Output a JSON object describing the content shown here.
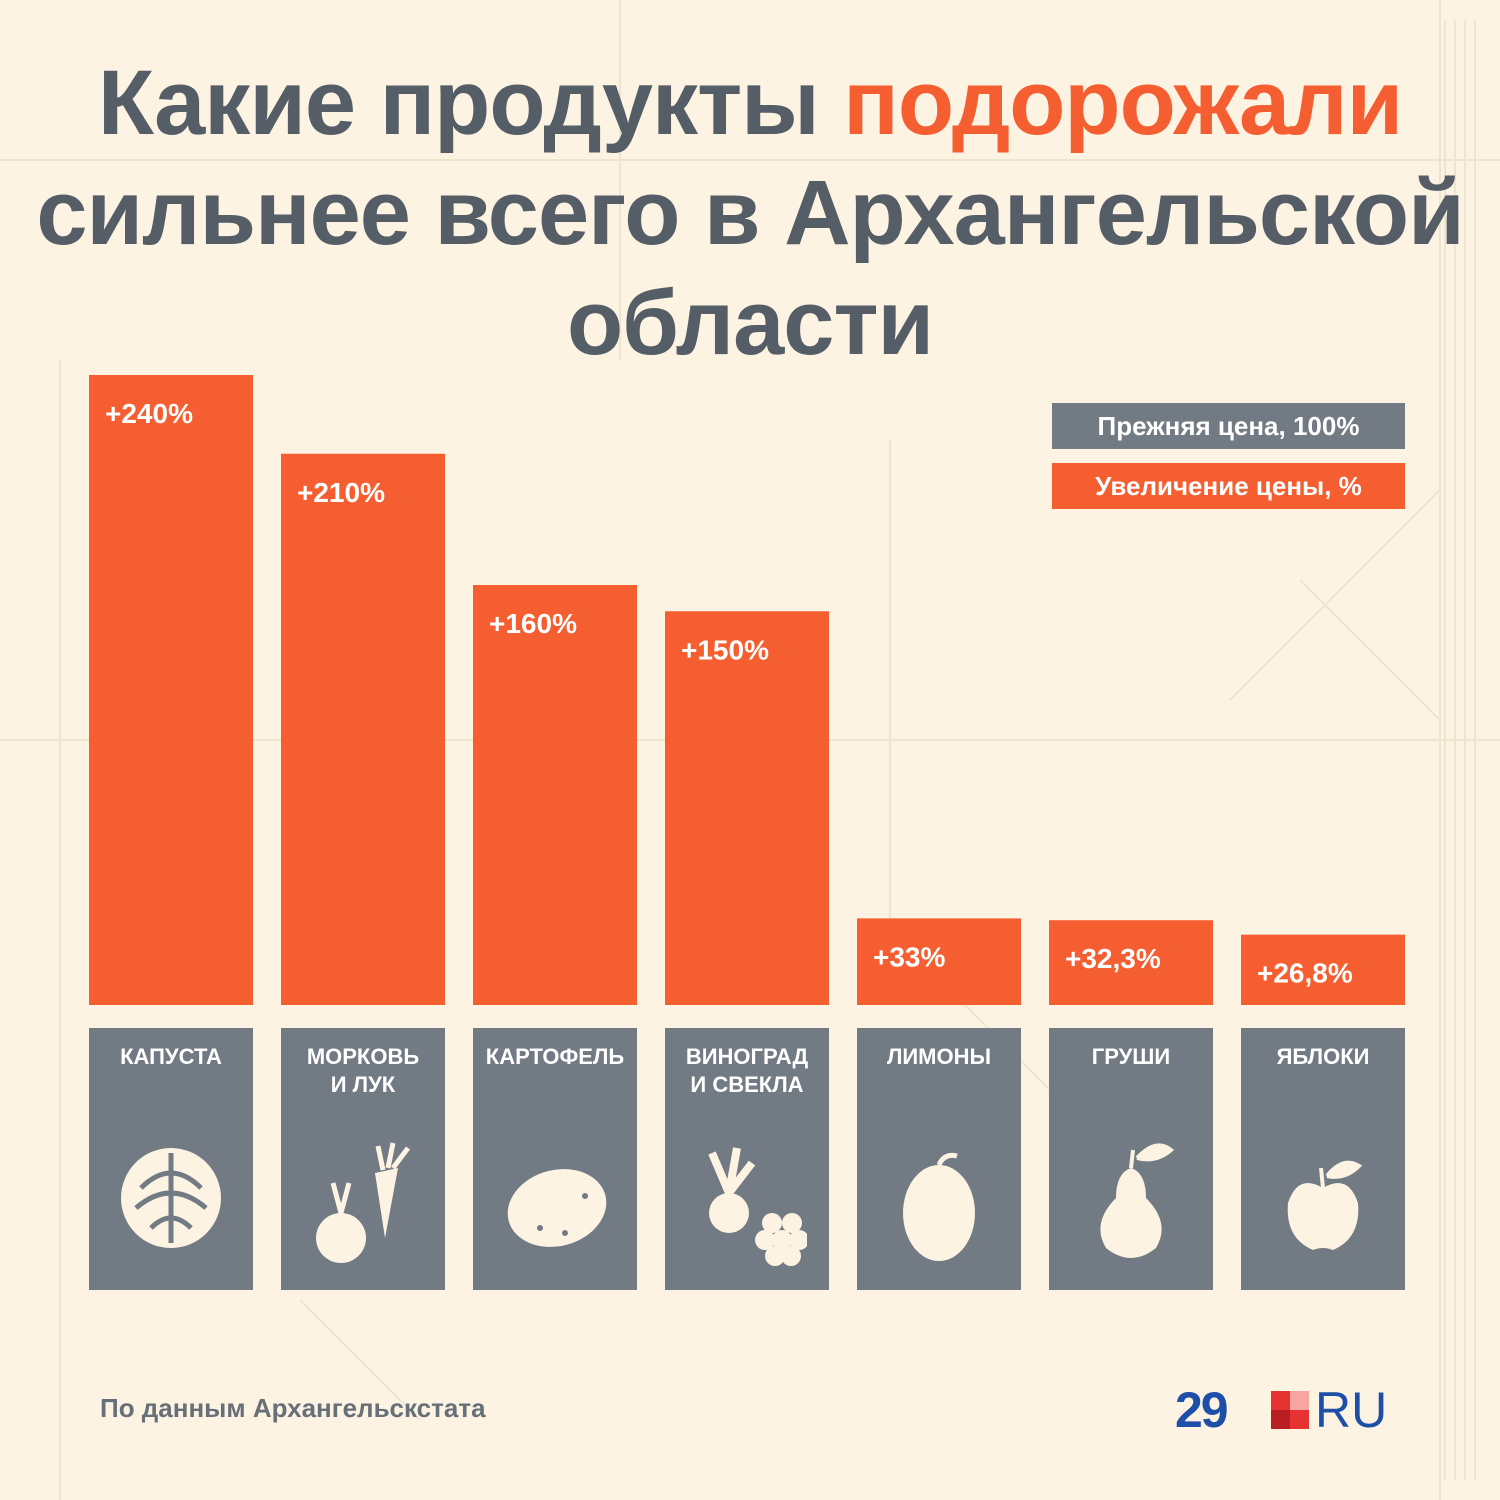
{
  "title": {
    "part1": "Какие продукты ",
    "accent": "подорожали",
    "line2": "сильнее всего в Архангельской",
    "line3": "области"
  },
  "legend": {
    "base": "Прежняя цена, 100%",
    "increase": "Увеличение цены, %"
  },
  "colors": {
    "accent": "#f45e31",
    "base": "#727a84",
    "background": "#fcf3e3",
    "title": "#555e66",
    "logo": "#1e4fa8"
  },
  "chart_data": {
    "type": "bar",
    "categories": [
      "КАПУСТА",
      "МОРКОВЬ И ЛУК",
      "КАРТОФЕЛЬ",
      "ВИНОГРАД И СВЕКЛА",
      "ЛИМОНЫ",
      "ГРУШИ",
      "ЯБЛОКИ"
    ],
    "values": [
      240,
      210,
      160,
      150,
      33,
      32.3,
      26.8
    ],
    "value_labels": [
      "+240%",
      "+210%",
      "+160%",
      "+150%",
      "+33%",
      "+32,3%",
      "+26,8%"
    ],
    "ylim": [
      0,
      240
    ]
  },
  "products": [
    {
      "line1": "КАПУСТА",
      "line2": "",
      "icon": "cabbage-icon"
    },
    {
      "line1": "МОРКОВЬ",
      "line2": "И ЛУК",
      "icon": "carrot-onion-icon"
    },
    {
      "line1": "КАРТОФЕЛЬ",
      "line2": "",
      "icon": "potato-icon"
    },
    {
      "line1": "ВИНОГРАД",
      "line2": "И СВЕКЛА",
      "icon": "beet-grape-icon"
    },
    {
      "line1": "ЛИМОНЫ",
      "line2": "",
      "icon": "lemon-icon"
    },
    {
      "line1": "ГРУШИ",
      "line2": "",
      "icon": "pear-icon"
    },
    {
      "line1": "ЯБЛОКИ",
      "line2": "",
      "icon": "apple-icon"
    }
  ],
  "footer": {
    "source": "По данным Архангельскстата",
    "logo_number": "29",
    "logo_suffix": "RU"
  }
}
